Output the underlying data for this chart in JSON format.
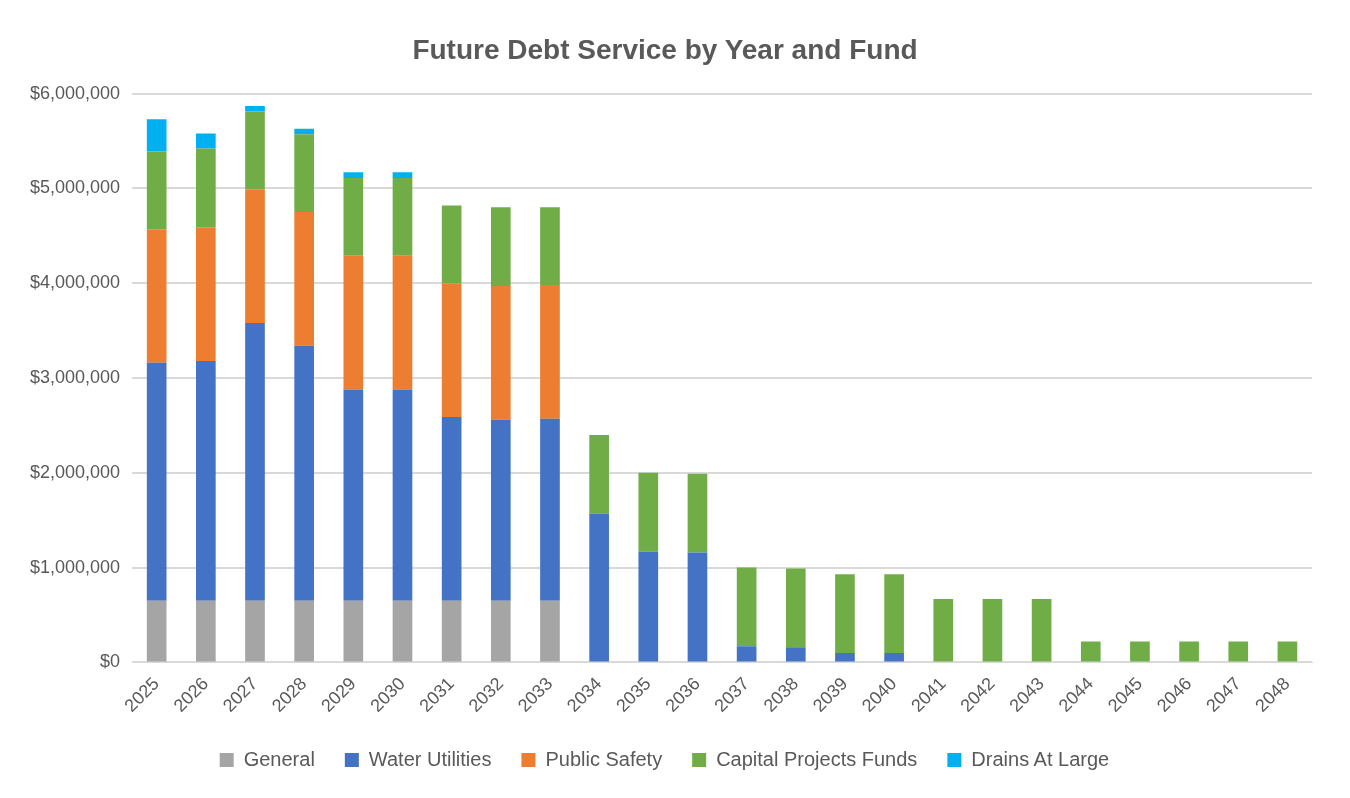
{
  "chart_data": {
    "type": "bar",
    "title": "Future Debt Service by Year and Fund",
    "stacked": true,
    "grid": "y",
    "legend": "bottom",
    "categories": [
      "2025",
      "2026",
      "2027",
      "2028",
      "2029",
      "2030",
      "2031",
      "2032",
      "2033",
      "2034",
      "2035",
      "2036",
      "2037",
      "2038",
      "2039",
      "2040",
      "2041",
      "2042",
      "2043",
      "2044",
      "2045",
      "2046",
      "2047",
      "2048"
    ],
    "ylim": [
      0,
      6000000
    ],
    "yticks": [
      {
        "value": 0,
        "label": "$0"
      },
      {
        "value": 1000000,
        "label": "$1,000,000"
      },
      {
        "value": 2000000,
        "label": "$2,000,000"
      },
      {
        "value": 3000000,
        "label": "$3,000,000"
      },
      {
        "value": 4000000,
        "label": "$4,000,000"
      },
      {
        "value": 5000000,
        "label": "$5,000,000"
      },
      {
        "value": 6000000,
        "label": "$6,000,000"
      }
    ],
    "series": [
      {
        "name": "General",
        "color": "#a5a5a5",
        "values": [
          650000,
          650000,
          650000,
          650000,
          650000,
          650000,
          650000,
          650000,
          650000,
          0,
          0,
          0,
          0,
          0,
          0,
          0,
          0,
          0,
          0,
          0,
          0,
          0,
          0,
          0
        ]
      },
      {
        "name": "Water Utilities",
        "color": "#4472c4",
        "values": [
          2510000,
          2530000,
          2930000,
          2690000,
          2230000,
          2230000,
          1940000,
          1910000,
          1920000,
          1570000,
          1170000,
          1160000,
          170000,
          160000,
          100000,
          100000,
          null,
          null,
          null,
          0,
          0,
          0,
          0,
          0
        ]
      },
      {
        "name": "Public Safety",
        "color": "#ed7d31",
        "values": [
          1410000,
          1410000,
          1410000,
          1410000,
          1410000,
          1410000,
          1410000,
          1410000,
          1410000,
          0,
          0,
          0,
          0,
          0,
          0,
          0,
          0,
          0,
          0,
          0,
          0,
          0,
          0,
          0
        ]
      },
      {
        "name": "Capital Projects Funds",
        "color": "#70ad47",
        "values": [
          820000,
          830000,
          820000,
          820000,
          820000,
          820000,
          820000,
          830000,
          820000,
          830000,
          830000,
          830000,
          830000,
          830000,
          830000,
          830000,
          670000,
          670000,
          670000,
          220000,
          220000,
          220000,
          220000,
          220000
        ]
      },
      {
        "name": "Drains At Large",
        "color": "#00b0f0",
        "values": [
          340000,
          160000,
          60000,
          60000,
          60000,
          60000,
          0,
          0,
          0,
          0,
          0,
          0,
          0,
          0,
          0,
          0,
          0,
          0,
          0,
          0,
          0,
          0,
          0,
          0
        ]
      }
    ]
  }
}
